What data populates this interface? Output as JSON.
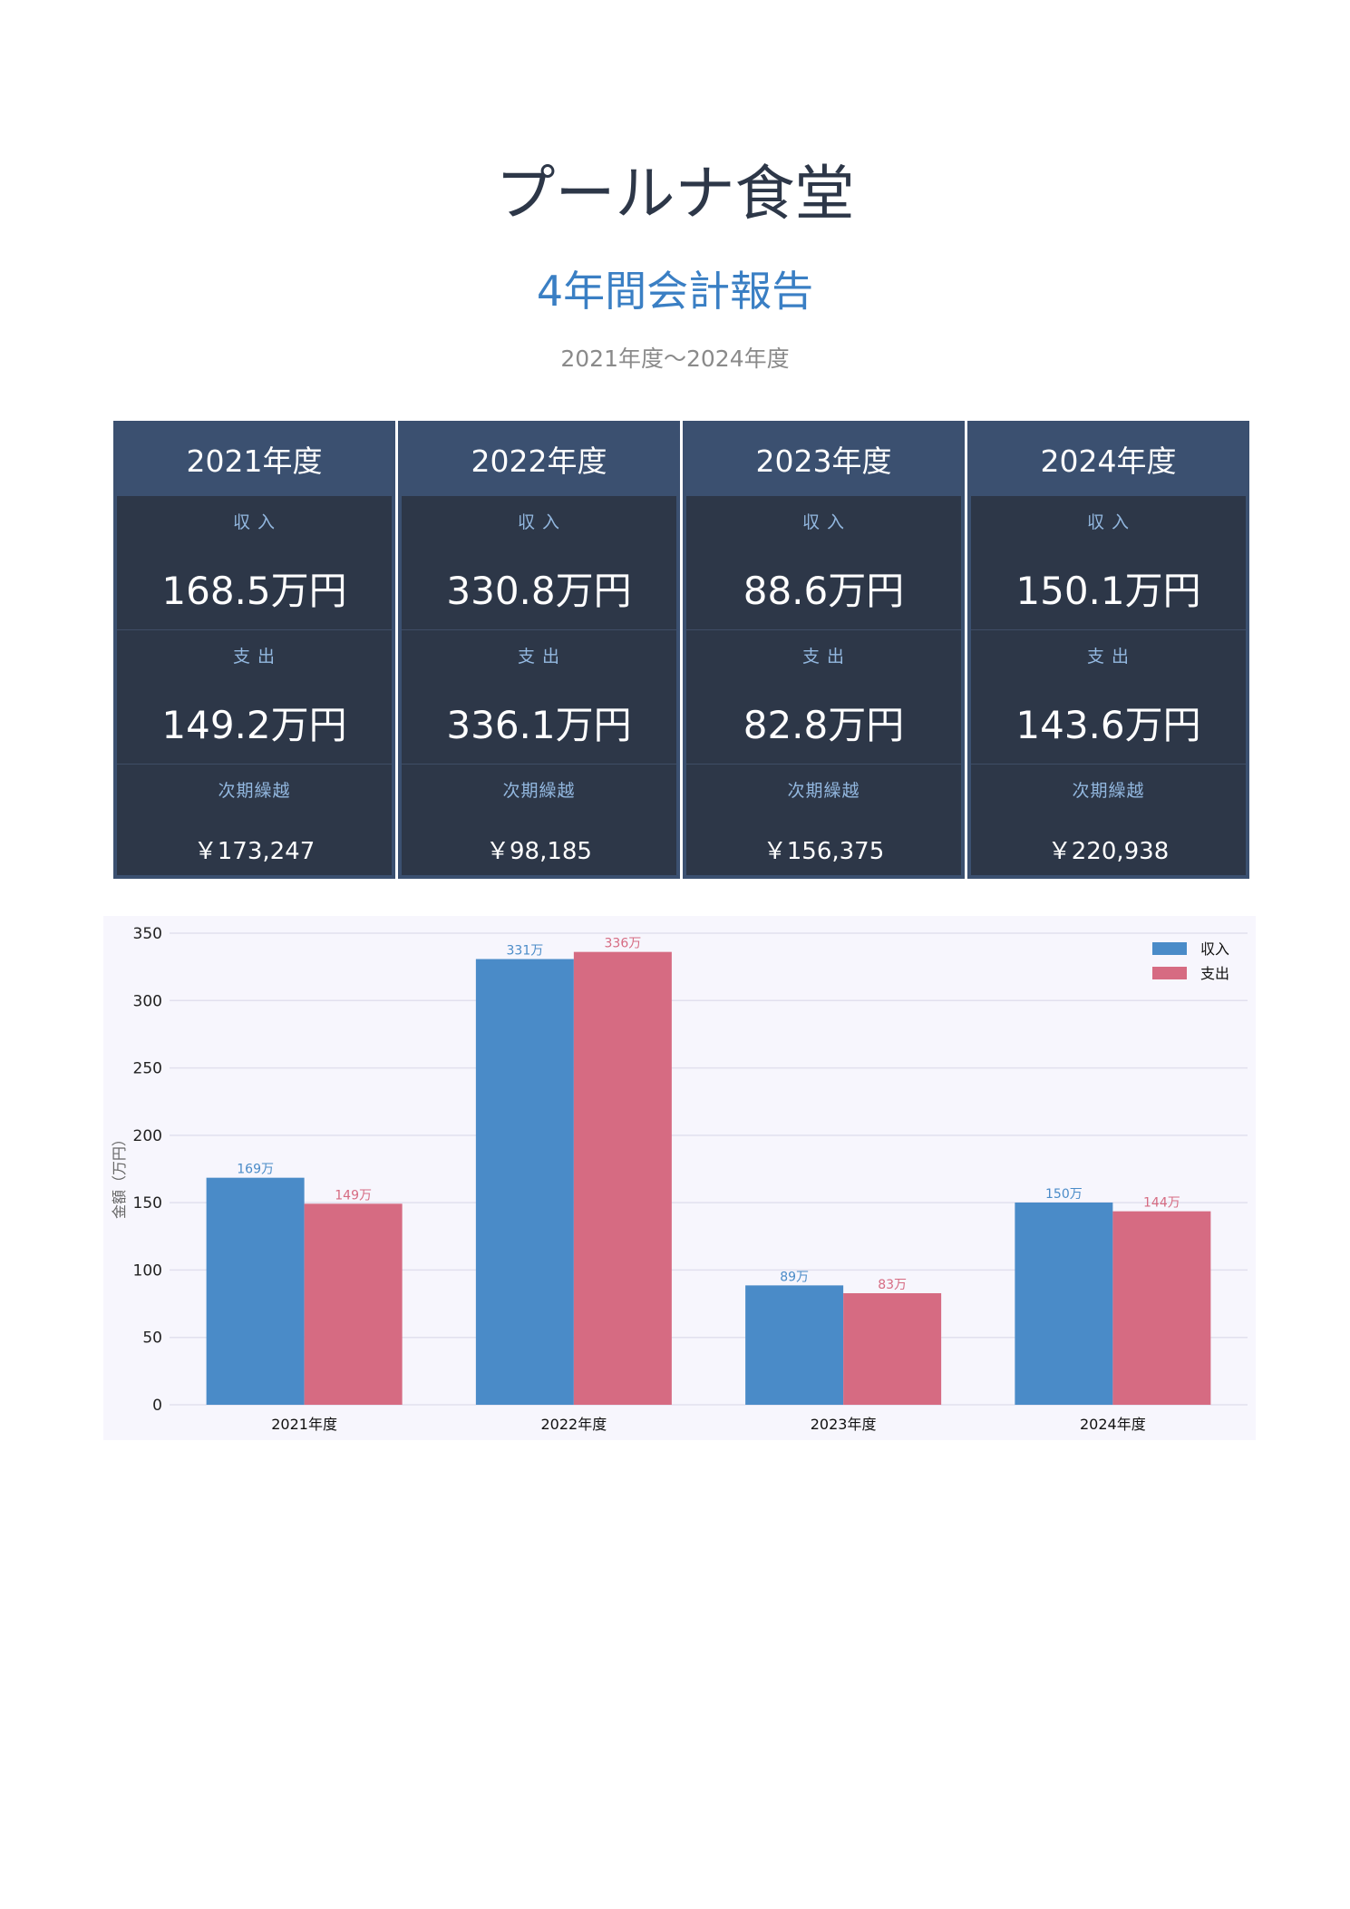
{
  "header": {
    "title": "プールナ食堂",
    "subtitle": "4年間会計報告",
    "period": "2021年度～2024年度"
  },
  "cards": [
    {
      "year": "2021年度",
      "income_label": "収 入",
      "income": "168.5万円",
      "expense_label": "支 出",
      "expense": "149.2万円",
      "carry_label": "次期繰越",
      "carry": "￥173,247"
    },
    {
      "year": "2022年度",
      "income_label": "収 入",
      "income": "330.8万円",
      "expense_label": "支 出",
      "expense": "336.1万円",
      "carry_label": "次期繰越",
      "carry": "￥98,185"
    },
    {
      "year": "2023年度",
      "income_label": "収 入",
      "income": "88.6万円",
      "expense_label": "支 出",
      "expense": "82.8万円",
      "carry_label": "次期繰越",
      "carry": "￥156,375"
    },
    {
      "year": "2024年度",
      "income_label": "収 入",
      "income": "150.1万円",
      "expense_label": "支 出",
      "expense": "143.6万円",
      "carry_label": "次期繰越",
      "carry": "￥220,938"
    }
  ],
  "chart_data": {
    "type": "bar",
    "title": "",
    "xlabel": "",
    "ylabel": "金額（万円）",
    "ylim": [
      0,
      350
    ],
    "yticks": [
      0,
      50,
      100,
      150,
      200,
      250,
      300,
      350
    ],
    "grid": true,
    "legend_position": "top-right",
    "categories": [
      "2021年度",
      "2022年度",
      "2023年度",
      "2024年度"
    ],
    "series": [
      {
        "name": "収入",
        "color": "#4a8bc8",
        "values": [
          168.5,
          330.8,
          88.6,
          150.1
        ],
        "labels": [
          "169万",
          "331万",
          "89万",
          "150万"
        ]
      },
      {
        "name": "支出",
        "color": "#d66b82",
        "values": [
          149.2,
          336.1,
          82.8,
          143.6
        ],
        "labels": [
          "149万",
          "336万",
          "83万",
          "144万"
        ]
      }
    ]
  }
}
